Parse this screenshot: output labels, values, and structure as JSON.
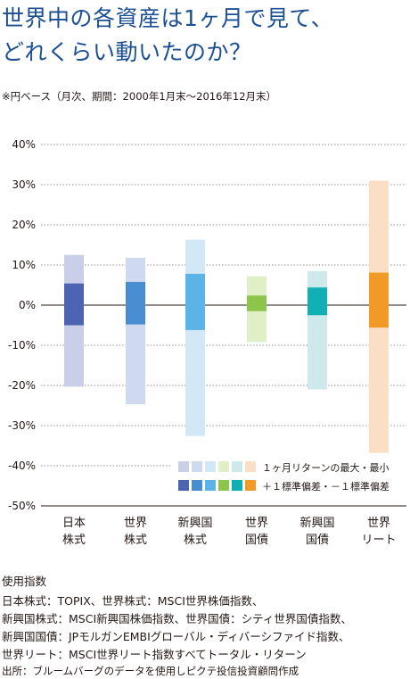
{
  "title_line1": "世界中の各資産は1ヶ月で見て、",
  "title_line2": "どれくらい動いたのか？",
  "subtitle": "※円ベース（月次、期間：2000年1月末～2016年12月末）",
  "footer": {
    "heading": "使用指数",
    "lines": [
      "日本株式：TOPIX、世界株式：MSCI世界株価指数、",
      "新興国株式：MSCI新興国株価指数、世界国債：シティ世界国債指数、",
      "新興国国債：JPモルガンEMBIグローバル・ディバーシファイド指数、",
      "世界リート：MSCI世界リート指数すべてトータル・リターン"
    ],
    "source": "出所：ブルームバーグのデータを使用しピクテ投信投資顧問作成"
  },
  "chart_data": {
    "type": "bar",
    "subtype": "floating-range",
    "unit": "%",
    "ylim": [
      -50,
      40
    ],
    "yticks": [
      "40%",
      "30%",
      "20%",
      "10%",
      "0%",
      "-10%",
      "-20%",
      "-30%",
      "-40%",
      "-50%"
    ],
    "grid": true,
    "categories": [
      {
        "line1": "日本",
        "line2": "株式"
      },
      {
        "line1": "世界",
        "line2": "株式"
      },
      {
        "line1": "新興国",
        "line2": "株式"
      },
      {
        "line1": "世界",
        "line2": "国債"
      },
      {
        "line1": "新興国",
        "line2": "国債"
      },
      {
        "line1": "世界",
        "line2": "リート"
      }
    ],
    "series": [
      {
        "name": "１ヶ月リターンの最大・最小",
        "max": [
          12.5,
          11.8,
          16.3,
          7.2,
          8.5,
          31.0
        ],
        "min": [
          -20.3,
          -24.7,
          -32.6,
          -9.2,
          -21.0,
          -36.8
        ]
      },
      {
        "name": "＋１標準偏差・－１標準偏差",
        "plus": [
          5.4,
          5.8,
          7.8,
          2.4,
          4.4,
          8.1
        ],
        "minus": [
          -5.0,
          -4.8,
          -6.2,
          -1.5,
          -2.5,
          -5.6
        ]
      }
    ],
    "colors": {
      "range": [
        "#c9cee9",
        "#cfdaf0",
        "#d3e8f7",
        "#e1efc6",
        "#cde9ec",
        "#fbdfc4"
      ],
      "sd": [
        "#4c64b2",
        "#4a8ed2",
        "#5bb3e7",
        "#8dc44a",
        "#12afb5",
        "#f29a27"
      ]
    },
    "legend_position": "bottom-right"
  }
}
